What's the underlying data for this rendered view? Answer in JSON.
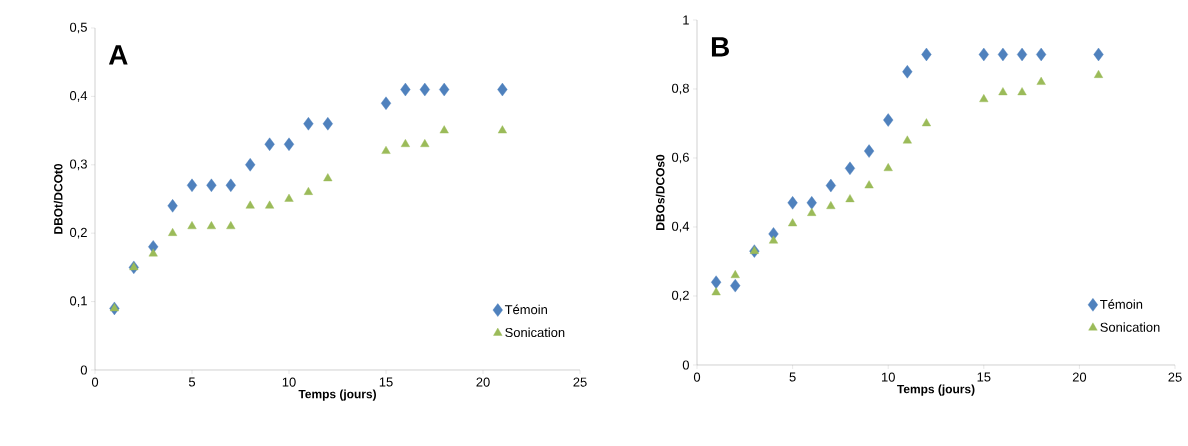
{
  "chart_data": [
    {
      "type": "scatter",
      "xlabel": "Temps (jours)",
      "ylabel": "DBOt/DCOt0",
      "annotations": [
        "A"
      ],
      "x": [
        1,
        2,
        3,
        4,
        5,
        6,
        7,
        8,
        9,
        10,
        11,
        12,
        15,
        16,
        17,
        18,
        21
      ],
      "series": [
        {
          "name": "Témoin",
          "color": "#4f81bd",
          "marker": "diamond",
          "values": [
            0.09,
            0.15,
            0.18,
            0.24,
            0.27,
            0.27,
            0.27,
            0.3,
            0.33,
            0.33,
            0.36,
            0.36,
            0.39,
            0.41,
            0.41,
            0.41,
            0.41
          ]
        },
        {
          "name": "Sonication",
          "color": "#9bbb59",
          "marker": "triangle",
          "values": [
            0.09,
            0.15,
            0.17,
            0.2,
            0.21,
            0.21,
            0.21,
            0.24,
            0.24,
            0.25,
            0.26,
            0.28,
            0.32,
            0.33,
            0.33,
            0.35,
            0.35
          ]
        }
      ],
      "xlim": [
        0,
        25
      ],
      "xticks": [
        0,
        5,
        10,
        15,
        20,
        25
      ],
      "ylim": [
        0,
        0.5
      ],
      "yticks": [
        0,
        {
          "value": 0.1,
          "label": "0,1"
        },
        {
          "value": 0.2,
          "label": "0,2"
        },
        {
          "value": 0.3,
          "label": "0,3"
        },
        {
          "value": 0.4,
          "label": "0,4"
        },
        {
          "value": 0.5,
          "label": "0,5"
        }
      ],
      "grid": false,
      "legend": "bottom right"
    },
    {
      "type": "scatter",
      "xlabel": "Temps (jours)",
      "ylabel": "DBOs/DCOs0",
      "annotations": [
        "B"
      ],
      "x": [
        1,
        2,
        3,
        4,
        5,
        6,
        7,
        8,
        9,
        10,
        11,
        12,
        15,
        16,
        17,
        18,
        21
      ],
      "series": [
        {
          "name": "Témoin",
          "color": "#4f81bd",
          "marker": "diamond",
          "values": [
            0.24,
            0.23,
            0.33,
            0.38,
            0.47,
            0.47,
            0.52,
            0.57,
            0.62,
            0.71,
            0.85,
            0.9,
            0.9,
            0.9,
            0.9,
            0.9,
            0.9
          ]
        },
        {
          "name": "Sonication",
          "color": "#9bbb59",
          "marker": "triangle",
          "values": [
            0.21,
            0.26,
            0.33,
            0.36,
            0.41,
            0.44,
            0.46,
            0.48,
            0.52,
            0.57,
            0.65,
            0.7,
            0.77,
            0.79,
            0.79,
            0.82,
            0.84
          ]
        }
      ],
      "xlim": [
        0,
        25
      ],
      "xticks": [
        0,
        5,
        10,
        15,
        20,
        25
      ],
      "ylim": [
        0,
        1
      ],
      "yticks": [
        0,
        {
          "value": 0.2,
          "label": "0,2"
        },
        {
          "value": 0.4,
          "label": "0,4"
        },
        {
          "value": 0.6,
          "label": "0,6"
        },
        {
          "value": 0.8,
          "label": "0,8"
        },
        1
      ],
      "grid": false,
      "legend": "bottom right"
    }
  ]
}
